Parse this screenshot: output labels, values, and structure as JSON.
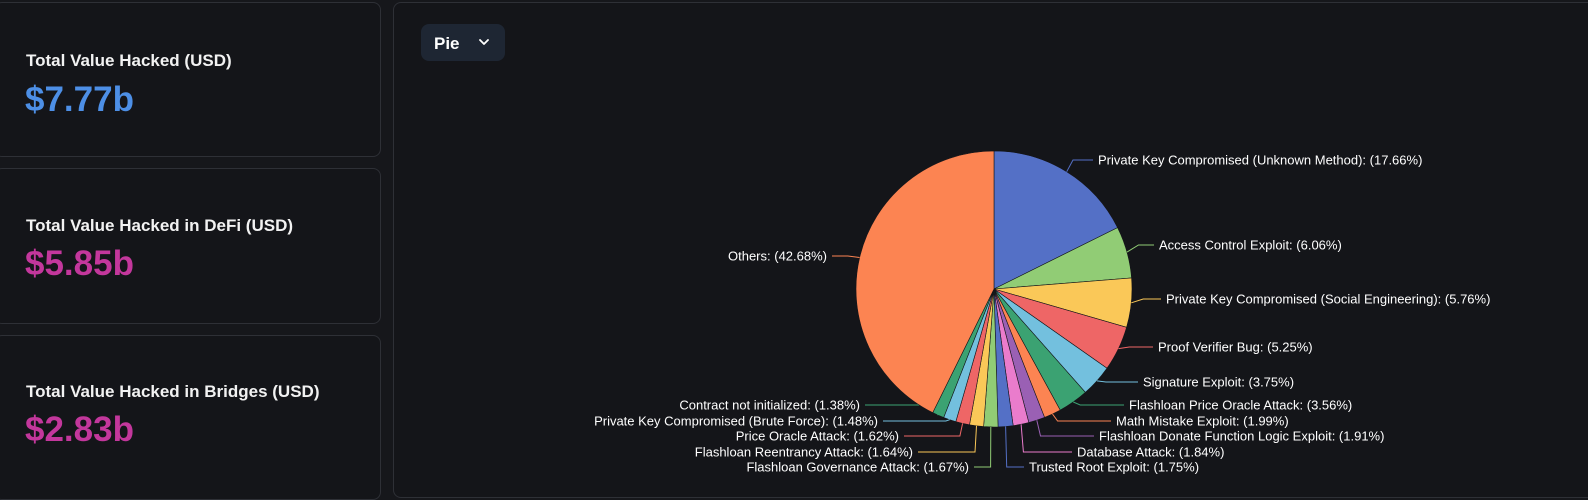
{
  "stats": [
    {
      "label": "Total Value Hacked (USD)",
      "value": "$7.77b",
      "color": "#4d8fe6"
    },
    {
      "label": "Total Value Hacked in DeFi (USD)",
      "value": "$5.85b",
      "color": "#c3379c"
    },
    {
      "label": "Total Value Hacked in Bridges (USD)",
      "value": "$2.83b",
      "color": "#c3379c"
    }
  ],
  "chart_selector": {
    "selected": "Pie",
    "icon": "chevron-down-icon"
  },
  "chart_data": {
    "type": "pie",
    "slices": [
      {
        "label": "Private Key Compromised (Unknown Method): (17.66%)",
        "value": 17.66,
        "color": "#5470c6"
      },
      {
        "label": "Access Control Exploit: (6.06%)",
        "value": 6.06,
        "color": "#91cc75"
      },
      {
        "label": "Private Key Compromised (Social Engineering): (5.76%)",
        "value": 5.76,
        "color": "#fac858"
      },
      {
        "label": "Proof Verifier Bug: (5.25%)",
        "value": 5.25,
        "color": "#ee6666"
      },
      {
        "label": "Signature Exploit: (3.75%)",
        "value": 3.75,
        "color": "#73c0de"
      },
      {
        "label": "Flashloan Price Oracle Attack: (3.56%)",
        "value": 3.56,
        "color": "#3ba272"
      },
      {
        "label": "Math Mistake Exploit: (1.99%)",
        "value": 1.99,
        "color": "#fc8452"
      },
      {
        "label": "Flashloan Donate Function Logic Exploit: (1.91%)",
        "value": 1.91,
        "color": "#9a60b4"
      },
      {
        "label": "Database Attack: (1.84%)",
        "value": 1.84,
        "color": "#ea7ccc"
      },
      {
        "label": "Trusted Root Exploit: (1.75%)",
        "value": 1.75,
        "color": "#5470c6"
      },
      {
        "label": "Flashloan Governance Attack: (1.67%)",
        "value": 1.67,
        "color": "#91cc75"
      },
      {
        "label": "Flashloan Reentrancy Attack: (1.64%)",
        "value": 1.64,
        "color": "#fac858"
      },
      {
        "label": "Price Oracle Attack: (1.62%)",
        "value": 1.62,
        "color": "#ee6666"
      },
      {
        "label": "Private Key Compromised (Brute Force): (1.48%)",
        "value": 1.48,
        "color": "#73c0de"
      },
      {
        "label": "Contract not initialized: (1.38%)",
        "value": 1.38,
        "color": "#3ba272"
      },
      {
        "label": "Others: (42.68%)",
        "value": 42.68,
        "color": "#fc8452"
      }
    ]
  }
}
